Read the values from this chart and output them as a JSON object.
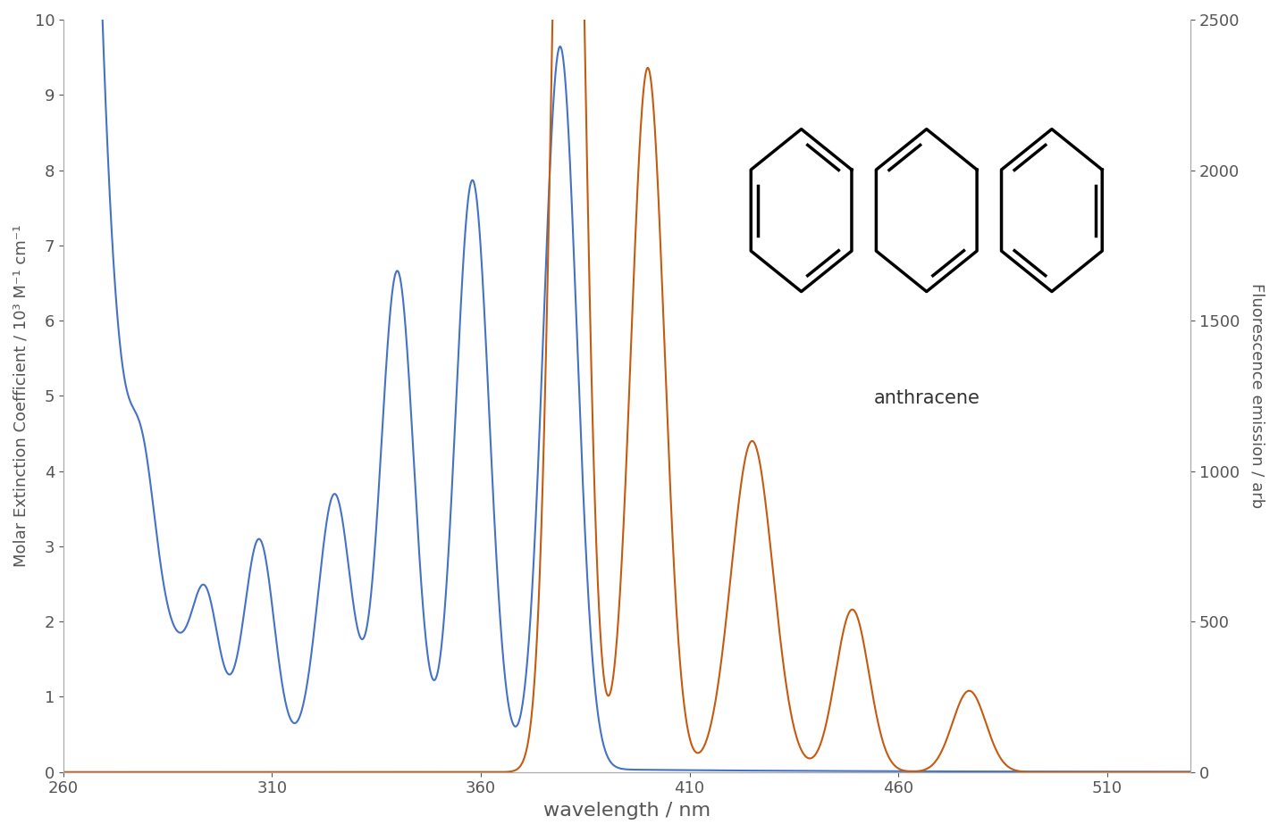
{
  "title": "",
  "xlabel": "wavelength / nm",
  "ylabel_left": "Molar Extinction Coefficient / 10³ M⁻¹ cm⁻¹",
  "ylabel_right": "Fluorescence emission / arb",
  "xlim": [
    260,
    530
  ],
  "ylim_left": [
    0,
    10
  ],
  "ylim_right": [
    0,
    2500
  ],
  "xticks": [
    260,
    310,
    360,
    410,
    460,
    510
  ],
  "yticks_left": [
    0,
    1,
    2,
    3,
    4,
    5,
    6,
    7,
    8,
    9,
    10
  ],
  "yticks_right": [
    0,
    500,
    1000,
    1500,
    2000,
    2500
  ],
  "blue_color": "#4472C4",
  "orange_color": "#C55A11",
  "background_color": "#ffffff",
  "anthracene_label": "anthracene",
  "figsize": [
    14.3,
    9.33
  ],
  "dpi": 100
}
